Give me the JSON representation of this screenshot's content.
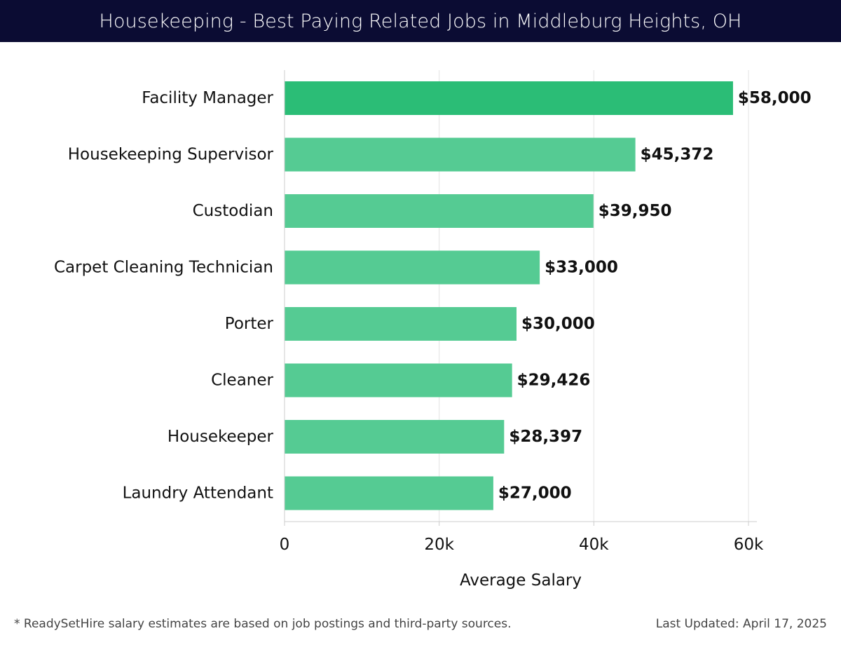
{
  "header": {
    "title": "Housekeeping - Best Paying Related Jobs in Middleburg Heights, OH"
  },
  "chart_data": {
    "type": "bar",
    "orientation": "horizontal",
    "categories": [
      "Facility Manager",
      "Housekeeping Supervisor",
      "Custodian",
      "Carpet Cleaning Technician",
      "Porter",
      "Cleaner",
      "Housekeeper",
      "Laundry Attendant"
    ],
    "values": [
      58000,
      45372,
      39950,
      33000,
      30000,
      29426,
      28397,
      27000
    ],
    "value_labels": [
      "$58,000",
      "$45,372",
      "$39,950",
      "$33,000",
      "$30,000",
      "$29,426",
      "$28,397",
      "$27,000"
    ],
    "xlabel": "Average Salary",
    "ylabel": "",
    "xlim": [
      0,
      60000
    ],
    "x_ticks": [
      0,
      20000,
      40000,
      60000
    ],
    "x_tick_labels": [
      "0",
      "20k",
      "40k",
      "60k"
    ],
    "grid": "vertical",
    "bar_color_top": "#2bbd76",
    "bar_color": "#55cb93"
  },
  "footer": {
    "note": "* ReadySetHire salary estimates are based on job postings and third-party sources.",
    "updated": "Last Updated: April 17, 2025"
  }
}
